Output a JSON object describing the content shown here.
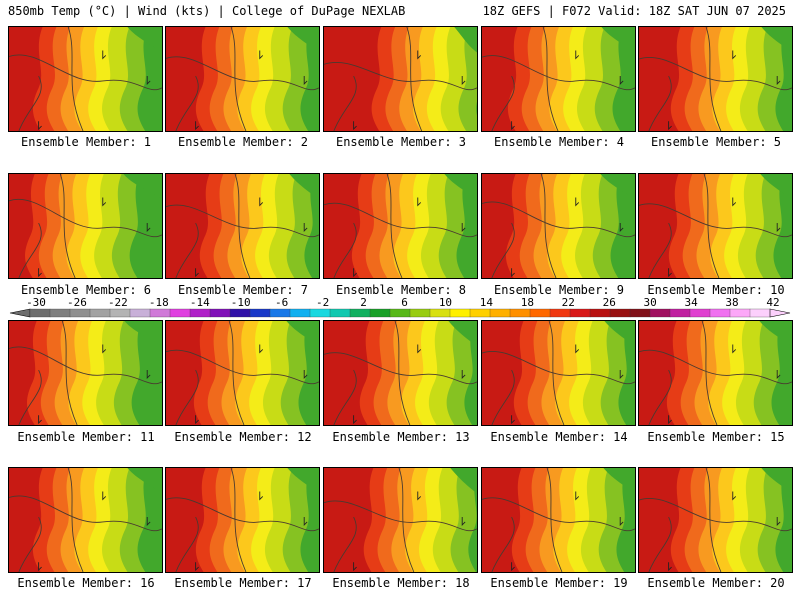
{
  "header": {
    "title_left": "850mb Temp (°C) | Wind (kts) | College of DuPage NEXLAB",
    "title_right": "18Z GEFS | F072 Valid: 18Z SAT JUN 07 2025"
  },
  "members": [
    "Ensemble Member: 1",
    "Ensemble Member: 2",
    "Ensemble Member: 3",
    "Ensemble Member: 4",
    "Ensemble Member: 5",
    "Ensemble Member: 6",
    "Ensemble Member: 7",
    "Ensemble Member: 8",
    "Ensemble Member: 9",
    "Ensemble Member: 10",
    "Ensemble Member: 11",
    "Ensemble Member: 12",
    "Ensemble Member: 13",
    "Ensemble Member: 14",
    "Ensemble Member: 15",
    "Ensemble Member: 16",
    "Ensemble Member: 17",
    "Ensemble Member: 18",
    "Ensemble Member: 19",
    "Ensemble Member: 20"
  ],
  "colorbar": {
    "labels": [
      "-30",
      "-26",
      "-22",
      "-18",
      "-14",
      "-10",
      "-6",
      "-2",
      "2",
      "6",
      "10",
      "14",
      "18",
      "22",
      "26",
      "30",
      "34",
      "38",
      "42"
    ],
    "colors": [
      "#6e6e6e",
      "#7f7f7f",
      "#909090",
      "#a2a2a2",
      "#b4b4b4",
      "#c8b0d8",
      "#d07ad8",
      "#e040e0",
      "#b020c8",
      "#8010b8",
      "#3010a8",
      "#1838c8",
      "#1878e8",
      "#10b0f0",
      "#18d8e0",
      "#10c8b0",
      "#10b060",
      "#18a028",
      "#58b818",
      "#98cc10",
      "#d8e010",
      "#fff000",
      "#ffd000",
      "#ffb000",
      "#ff9000",
      "#ff6800",
      "#f03810",
      "#d81818",
      "#b81010",
      "#981010",
      "#801018",
      "#a01060",
      "#c020a0",
      "#e040d0",
      "#f070f0",
      "#fca8f8",
      "#fcd0fc"
    ]
  },
  "panel_palette": [
    "#42a82c",
    "#86c222",
    "#c8dc16",
    "#f4ec18",
    "#fcc81c",
    "#f89a20",
    "#f06a1c",
    "#e63c16",
    "#c81a14"
  ]
}
